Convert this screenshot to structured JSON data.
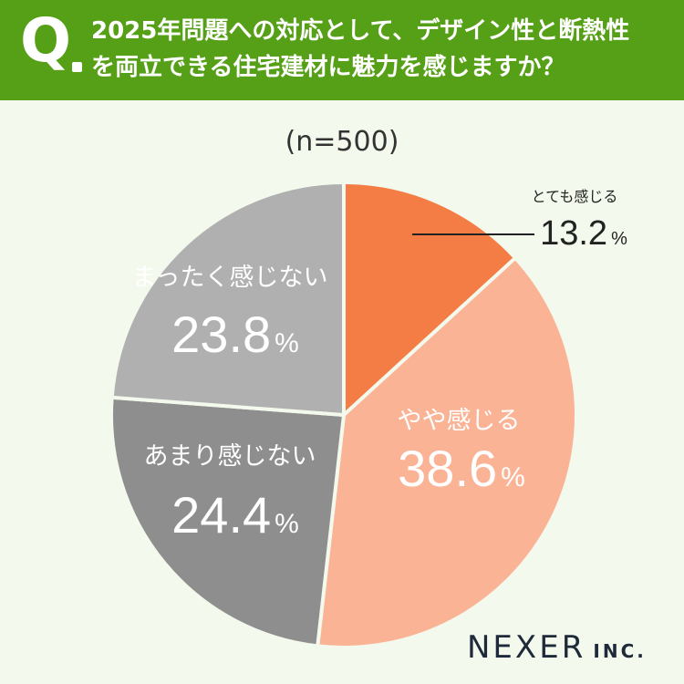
{
  "header": {
    "q_letter": "Q",
    "question_line1": "2025年問題への対応として、デザイン性と断熱性",
    "question_line2": "を両立できる住宅建材に魅力を感じますか？"
  },
  "sample_size": "(n=500)",
  "colors": {
    "header_bg": "#56a018",
    "background": "#f3f9ec",
    "slice_strong": "#f47c45",
    "slice_somewhat": "#fbb395",
    "slice_not_much": "#8e8e8e",
    "slice_not_at_all": "#b0b0b0"
  },
  "chart_data": {
    "type": "pie",
    "unit": "%",
    "start_angle": "12 o'clock, clockwise",
    "slices": [
      {
        "label": "とても感じる",
        "value": 13.2,
        "value_text": "13.2",
        "color": "#f47c45"
      },
      {
        "label": "やや感じる",
        "value": 38.6,
        "value_text": "38.6",
        "color": "#fbb395"
      },
      {
        "label": "あまり感じない",
        "value": 24.4,
        "value_text": "24.4",
        "color": "#8e8e8e"
      },
      {
        "label": "まったく感じない",
        "value": 23.8,
        "value_text": "23.8",
        "color": "#b0b0b0"
      }
    ]
  },
  "logo": {
    "main": "NEXER",
    "suffix": "INC."
  }
}
